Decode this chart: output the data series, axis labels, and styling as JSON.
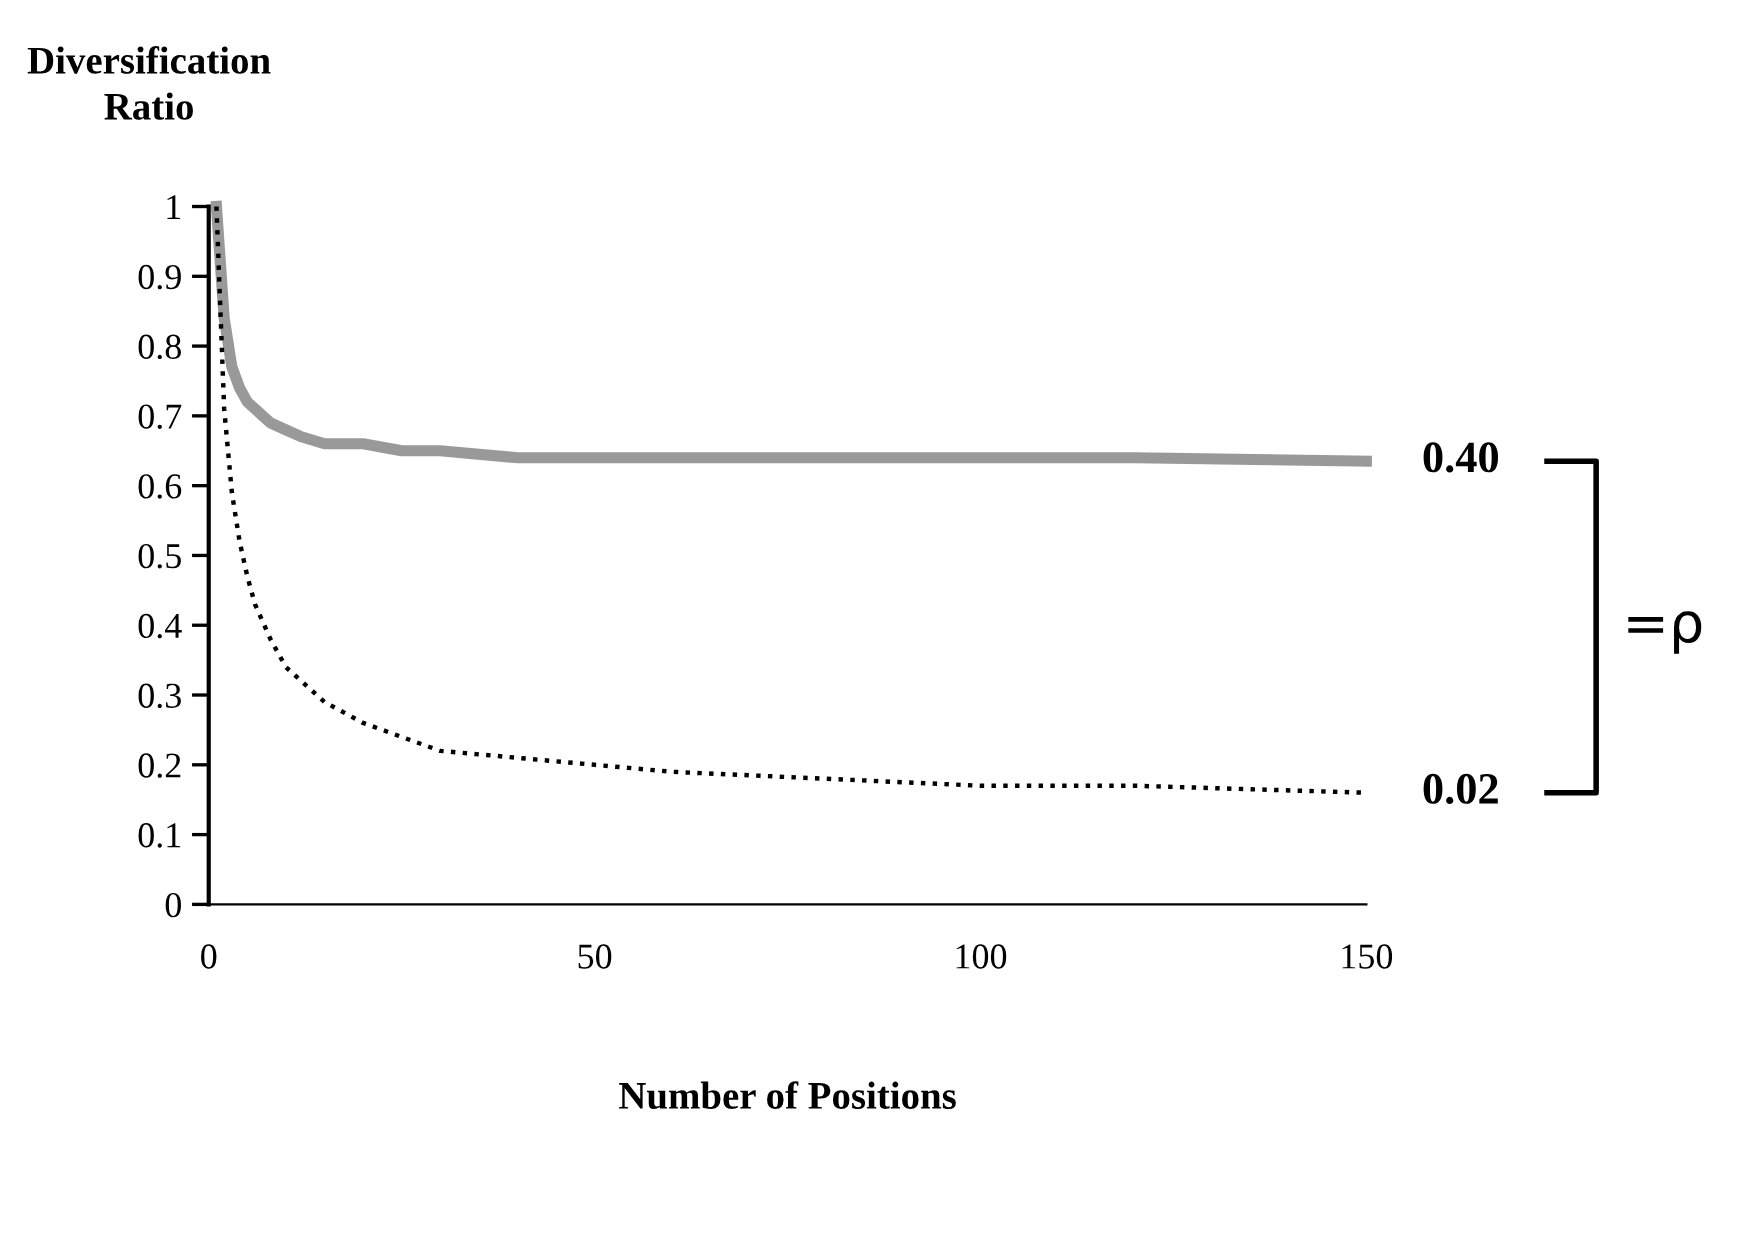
{
  "chart_data": {
    "type": "line",
    "xlabel": "Number of Positions",
    "ylabel": "Diversification\nRatio",
    "xlim": [
      0,
      150
    ],
    "xticks": [
      0,
      50,
      100,
      150
    ],
    "ylim": [
      0,
      1
    ],
    "yticks": [
      0,
      0.1,
      0.2,
      0.3,
      0.4,
      0.5,
      0.6,
      0.7,
      0.8,
      0.9,
      1
    ],
    "grid": false,
    "legend": false,
    "marker": "none",
    "series": [
      {
        "name": "0.40",
        "color": "#999999",
        "line_style": "solid",
        "x": [
          1,
          2,
          3,
          4,
          5,
          6,
          8,
          10,
          12,
          15,
          20,
          25,
          30,
          40,
          50,
          60,
          80,
          100,
          120,
          150
        ],
        "values": [
          1,
          0.84,
          0.77,
          0.74,
          0.72,
          0.71,
          0.69,
          0.68,
          0.67,
          0.66,
          0.66,
          0.65,
          0.65,
          0.64,
          0.64,
          0.64,
          0.64,
          0.64,
          0.64,
          0.635
        ]
      },
      {
        "name": "0.02",
        "color": "#000000",
        "line_style": "dotted",
        "x": [
          1,
          2,
          3,
          4,
          5,
          6,
          8,
          10,
          12,
          15,
          20,
          25,
          30,
          40,
          50,
          60,
          80,
          100,
          120,
          150
        ],
        "values": [
          1,
          0.71,
          0.59,
          0.52,
          0.47,
          0.43,
          0.38,
          0.34,
          0.32,
          0.29,
          0.26,
          0.24,
          0.22,
          0.21,
          0.2,
          0.19,
          0.18,
          0.17,
          0.17,
          0.16
        ]
      }
    ],
    "annotations": [
      "=ρ"
    ]
  }
}
